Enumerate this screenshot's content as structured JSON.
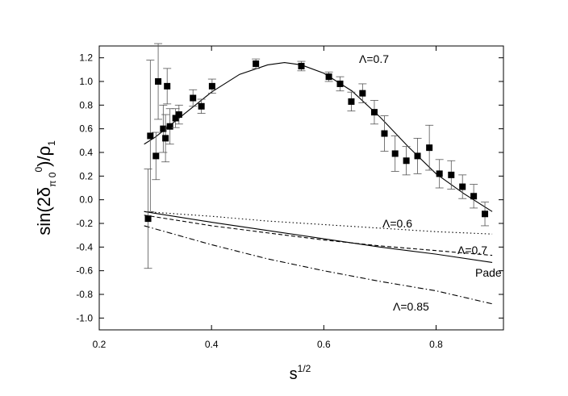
{
  "chart_data": {
    "type": "scatter",
    "xlabel": [
      "s",
      "1/2"
    ],
    "ylabel": [
      "sin(2δ",
      "π 0",
      "0",
      ")/ρ",
      "1"
    ],
    "xlim": [
      0.2,
      0.92
    ],
    "ylim": [
      -1.1,
      1.3
    ],
    "xticks": [
      0.2,
      0.4,
      0.6,
      0.8
    ],
    "yticks": [
      {
        "value": -1.0,
        "label": "-1.0"
      },
      {
        "value": -0.8,
        "label": "-0.8"
      },
      {
        "value": -0.6,
        "label": "-0.6"
      },
      {
        "value": -0.4,
        "label": "-0.4"
      },
      {
        "value": -0.2,
        "label": "-0.2"
      },
      {
        "value": 0.0,
        "label": "0.0"
      },
      0.2,
      0.4,
      0.6,
      0.8,
      {
        "value": 1.0,
        "label": "1.0"
      },
      1.2
    ],
    "color": "#000000",
    "points": {
      "x": [
        0.287,
        0.291,
        0.301,
        0.305,
        0.314,
        0.318,
        0.321,
        0.326,
        0.336,
        0.342,
        0.367,
        0.382,
        0.401,
        0.479,
        0.56,
        0.609,
        0.629,
        0.649,
        0.669,
        0.69,
        0.708,
        0.727,
        0.747,
        0.767,
        0.788,
        0.806,
        0.827,
        0.847,
        0.867,
        0.887
      ],
      "y": [
        -0.16,
        0.54,
        0.37,
        1.0,
        0.6,
        0.52,
        0.96,
        0.62,
        0.69,
        0.72,
        0.86,
        0.79,
        0.96,
        1.15,
        1.13,
        1.04,
        0.98,
        0.83,
        0.9,
        0.74,
        0.56,
        0.39,
        0.33,
        0.37,
        0.44,
        0.22,
        0.21,
        0.11,
        0.03,
        -0.12
      ],
      "err": [
        0.42,
        0.64,
        0.2,
        0.32,
        0.2,
        0.2,
        0.15,
        0.15,
        0.08,
        0.08,
        0.07,
        0.06,
        0.06,
        0.04,
        0.04,
        0.04,
        0.06,
        0.08,
        0.08,
        0.1,
        0.15,
        0.15,
        0.12,
        0.15,
        0.19,
        0.12,
        0.12,
        0.1,
        0.1,
        0.1
      ]
    },
    "lines": [
      {
        "style": "solid",
        "x": [
          0.28,
          0.3,
          0.35,
          0.4,
          0.45,
          0.5,
          0.53,
          0.56,
          0.6,
          0.65,
          0.7,
          0.75,
          0.8,
          0.85,
          0.9
        ],
        "y": [
          0.47,
          0.53,
          0.72,
          0.91,
          1.06,
          1.14,
          1.16,
          1.14,
          1.07,
          0.92,
          0.7,
          0.45,
          0.22,
          0.05,
          -0.1
        ]
      },
      {
        "style": "dotted",
        "x": [
          0.28,
          0.4,
          0.5,
          0.6,
          0.7,
          0.8,
          0.9
        ],
        "y": [
          -0.1,
          -0.14,
          -0.18,
          -0.21,
          -0.24,
          -0.27,
          -0.29
        ]
      },
      {
        "style": "dashed",
        "x": [
          0.28,
          0.4,
          0.5,
          0.6,
          0.7,
          0.8,
          0.9
        ],
        "y": [
          -0.13,
          -0.22,
          -0.28,
          -0.34,
          -0.39,
          -0.43,
          -0.47
        ]
      },
      {
        "style": "solid",
        "x": [
          0.28,
          0.4,
          0.5,
          0.6,
          0.7,
          0.8,
          0.9
        ],
        "y": [
          -0.1,
          -0.19,
          -0.26,
          -0.33,
          -0.4,
          -0.46,
          -0.53
        ]
      },
      {
        "style": "dashdot",
        "x": [
          0.28,
          0.4,
          0.5,
          0.6,
          0.7,
          0.8,
          0.9
        ],
        "y": [
          -0.22,
          -0.38,
          -0.5,
          -0.6,
          -0.69,
          -0.77,
          -0.88
        ]
      }
    ],
    "annotations": [
      "Λ=0.7",
      "Λ=0.6",
      "Λ=0.7",
      "Pade",
      "Λ=0.85"
    ]
  }
}
